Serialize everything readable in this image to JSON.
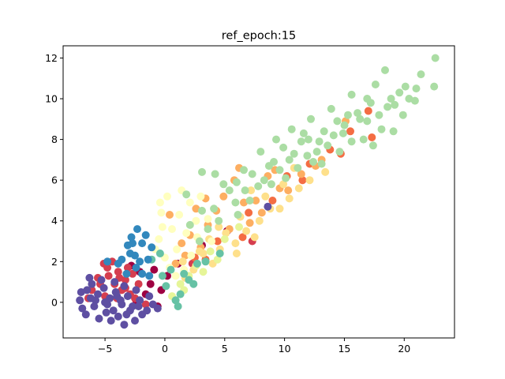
{
  "chart_data": {
    "type": "scatter",
    "title": "ref_epoch:15",
    "xlabel": "",
    "ylabel": "",
    "xlim": [
      -8.5,
      24.2
    ],
    "ylim": [
      -1.75,
      12.6
    ],
    "x_ticks": [
      -5,
      0,
      5,
      10,
      15,
      20
    ],
    "x_tick_labels": [
      "−5",
      "0",
      "5",
      "10",
      "15",
      "20"
    ],
    "y_ticks": [
      0,
      2,
      4,
      6,
      8,
      10,
      12
    ],
    "y_tick_labels": [
      "0",
      "2",
      "4",
      "6",
      "8",
      "10",
      "12"
    ],
    "grid": false,
    "legend": "none",
    "colormap": "Spectral",
    "series": [
      {
        "color": "#9e0142",
        "points": [
          [
            -2.1,
            1.5
          ],
          [
            -1.2,
            0.9
          ],
          [
            -0.6,
            -0.2
          ],
          [
            -2.8,
            1.8
          ],
          [
            0.2,
            1.3
          ],
          [
            3.1,
            2.8
          ],
          [
            -1.6,
            0.4
          ],
          [
            -0.3,
            0.6
          ],
          [
            1.1,
            1.9
          ],
          [
            -2.4,
            0.1
          ],
          [
            5.2,
            3.5
          ],
          [
            -0.9,
            1.6
          ]
        ]
      },
      {
        "color": "#d53e4f",
        "points": [
          [
            -4.8,
            1.7
          ],
          [
            -5.6,
            1.2
          ],
          [
            -3.9,
            1.5
          ],
          [
            -4.2,
            0.9
          ],
          [
            -3.3,
            1.1
          ],
          [
            -6.1,
            0.6
          ],
          [
            -2.9,
            0.4
          ],
          [
            -5.0,
            0.3
          ],
          [
            -4.4,
            2.0
          ],
          [
            -3.6,
            0.6
          ],
          [
            -2.5,
            0.2
          ],
          [
            -5.4,
            0.9
          ],
          [
            -3.1,
            1.7
          ],
          [
            -4.0,
            0.2
          ],
          [
            -2.2,
            0.9
          ],
          [
            -6.4,
            0.2
          ],
          [
            -1.6,
            -0.1
          ],
          [
            -4.7,
            1.3
          ],
          [
            -3.8,
            1.2
          ],
          [
            -2.7,
            1.4
          ],
          [
            2.3,
            1.9
          ],
          [
            7.3,
            3.0
          ],
          [
            -5.1,
            1.9
          ],
          [
            -3.3,
            0.7
          ]
        ]
      },
      {
        "color": "#f46d43",
        "points": [
          [
            17.0,
            9.4
          ],
          [
            15.5,
            8.4
          ],
          [
            12.1,
            6.8
          ],
          [
            10.2,
            6.2
          ],
          [
            4.4,
            3.0
          ],
          [
            2.5,
            2.2
          ],
          [
            7.0,
            4.4
          ],
          [
            11.5,
            6.0
          ],
          [
            6.5,
            3.2
          ],
          [
            13.8,
            7.5
          ],
          [
            17.3,
            8.1
          ],
          [
            3.4,
            2.1
          ],
          [
            9.0,
            5.0
          ],
          [
            14.7,
            7.3
          ]
        ]
      },
      {
        "color": "#fdae61",
        "points": [
          [
            6.2,
            6.6
          ],
          [
            4.3,
            4.5
          ],
          [
            3.4,
            5.1
          ],
          [
            2.1,
            3.3
          ],
          [
            0.4,
            4.3
          ],
          [
            8.6,
            6.2
          ],
          [
            5.4,
            3.6
          ],
          [
            9.6,
            5.6
          ],
          [
            1.4,
            2.9
          ],
          [
            11.4,
            6.3
          ],
          [
            15.1,
            8.9
          ],
          [
            3.6,
            3.8
          ],
          [
            6.6,
            4.9
          ],
          [
            7.6,
            5.0
          ],
          [
            10.3,
            5.5
          ],
          [
            2.6,
            4.6
          ],
          [
            4.9,
            5.2
          ],
          [
            13.1,
            7.0
          ],
          [
            8.1,
            4.4
          ],
          [
            1.7,
            2.3
          ],
          [
            5.8,
            6.0
          ],
          [
            12.6,
            6.7
          ],
          [
            3.0,
            2.7
          ],
          [
            7.1,
            3.9
          ],
          [
            0.9,
            1.9
          ],
          [
            9.2,
            6.5
          ]
        ]
      },
      {
        "color": "#fee08b",
        "points": [
          [
            4.6,
            2.6
          ],
          [
            6.8,
            3.5
          ],
          [
            8.8,
            4.6
          ],
          [
            3.2,
            2.4
          ],
          [
            10.4,
            5.1
          ],
          [
            5.9,
            2.9
          ],
          [
            2.4,
            1.6
          ],
          [
            7.9,
            4.0
          ],
          [
            12.1,
            6.0
          ],
          [
            1.7,
            1.2
          ],
          [
            9.6,
            4.6
          ],
          [
            6.3,
            4.2
          ],
          [
            4.0,
            1.9
          ],
          [
            11.2,
            5.6
          ],
          [
            7.5,
            3.2
          ],
          [
            3.7,
            3.1
          ],
          [
            5.1,
            3.4
          ],
          [
            8.4,
            5.2
          ],
          [
            2.9,
            2.5
          ],
          [
            13.4,
            6.4
          ],
          [
            6.0,
            2.4
          ],
          [
            9.9,
            5.8
          ],
          [
            4.5,
            3.7
          ],
          [
            10.8,
            6.6
          ],
          [
            1.5,
            2.0
          ],
          [
            7.2,
            5.5
          ]
        ]
      },
      {
        "color": "#ffffbf",
        "points": [
          [
            0.2,
            5.2
          ],
          [
            -0.3,
            4.4
          ],
          [
            1.4,
            5.5
          ],
          [
            0.6,
            3.6
          ],
          [
            2.1,
            4.9
          ],
          [
            -0.5,
            3.1
          ],
          [
            1.0,
            2.6
          ],
          [
            2.6,
            4.0
          ],
          [
            0.0,
            2.2
          ],
          [
            3.0,
            5.2
          ],
          [
            -0.8,
            2.6
          ],
          [
            1.8,
            3.4
          ],
          [
            0.4,
            1.7
          ],
          [
            2.7,
            3.2
          ],
          [
            1.2,
            4.3
          ],
          [
            -0.4,
            4.9
          ],
          [
            3.6,
            4.1
          ],
          [
            0.9,
            1.3
          ],
          [
            2.2,
            2.3
          ],
          [
            3.9,
            3.0
          ],
          [
            1.6,
            1.6
          ],
          [
            -0.2,
            3.7
          ]
        ]
      },
      {
        "color": "#e6f598",
        "points": [
          [
            1.3,
            0.9
          ],
          [
            2.6,
            1.8
          ],
          [
            3.8,
            2.5
          ],
          [
            0.6,
            0.3
          ],
          [
            5.0,
            3.1
          ],
          [
            2.0,
            1.3
          ],
          [
            4.4,
            2.1
          ],
          [
            6.2,
            3.7
          ],
          [
            1.6,
            0.6
          ],
          [
            3.2,
            1.5
          ]
        ]
      },
      {
        "color": "#abdda4",
        "points": [
          [
            22.6,
            12.0
          ],
          [
            21.4,
            11.2
          ],
          [
            21.0,
            10.5
          ],
          [
            22.5,
            10.6
          ],
          [
            20.4,
            10.0
          ],
          [
            19.6,
            10.3
          ],
          [
            18.6,
            9.6
          ],
          [
            19.9,
            9.2
          ],
          [
            17.2,
            9.8
          ],
          [
            16.1,
            9.3
          ],
          [
            15.0,
            8.7
          ],
          [
            16.9,
            8.9
          ],
          [
            18.1,
            8.5
          ],
          [
            14.1,
            8.2
          ],
          [
            13.3,
            8.4
          ],
          [
            15.6,
            7.9
          ],
          [
            12.7,
            7.4
          ],
          [
            11.4,
            7.9
          ],
          [
            14.6,
            7.4
          ],
          [
            16.6,
            8.0
          ],
          [
            10.4,
            7.0
          ],
          [
            11.9,
            7.2
          ],
          [
            13.1,
            6.8
          ],
          [
            9.6,
            6.5
          ],
          [
            8.7,
            6.7
          ],
          [
            10.1,
            6.1
          ],
          [
            7.8,
            5.7
          ],
          [
            8.9,
            5.8
          ],
          [
            6.7,
            5.5
          ],
          [
            7.3,
            6.3
          ],
          [
            5.9,
            4.9
          ],
          [
            4.9,
            5.8
          ],
          [
            4.1,
            4.6
          ],
          [
            6.1,
            4.3
          ],
          [
            3.1,
            4.5
          ],
          [
            3.6,
            3.6
          ],
          [
            2.1,
            3.8
          ],
          [
            1.8,
            5.3
          ],
          [
            9.3,
            8.0
          ],
          [
            10.6,
            8.5
          ],
          [
            12.2,
            9.0
          ],
          [
            13.9,
            9.5
          ],
          [
            15.6,
            10.2
          ],
          [
            17.6,
            10.7
          ],
          [
            18.4,
            11.4
          ],
          [
            11.1,
            6.6
          ],
          [
            12.9,
            7.9
          ],
          [
            14.9,
            8.3
          ],
          [
            16.3,
            9.0
          ],
          [
            17.9,
            9.2
          ],
          [
            19.2,
            9.7
          ],
          [
            20.9,
            9.9
          ],
          [
            8.0,
            7.4
          ],
          [
            6.6,
            6.5
          ],
          [
            5.4,
            5.5
          ],
          [
            4.5,
            4.0
          ],
          [
            2.9,
            3.0
          ],
          [
            9.9,
            7.6
          ],
          [
            12.0,
            8.0
          ],
          [
            13.6,
            7.7
          ],
          [
            15.3,
            9.2
          ],
          [
            11.6,
            8.3
          ],
          [
            7.1,
            5.0
          ],
          [
            4.2,
            6.3
          ],
          [
            3.1,
            6.4
          ],
          [
            9.1,
            6.9
          ],
          [
            16.9,
            10.0
          ],
          [
            18.9,
            10.0
          ],
          [
            20.1,
            10.6
          ],
          [
            14.4,
            8.9
          ],
          [
            12.4,
            6.9
          ],
          [
            10.8,
            7.3
          ],
          [
            8.3,
            6.0
          ],
          [
            6.0,
            5.9
          ],
          [
            19.1,
            8.4
          ],
          [
            17.4,
            7.7
          ]
        ]
      },
      {
        "color": "#66c2a5",
        "points": [
          [
            -0.4,
            2.4
          ],
          [
            0.5,
            1.6
          ],
          [
            1.3,
            0.4
          ],
          [
            2.0,
            1.1
          ],
          [
            -1.1,
            2.1
          ],
          [
            0.1,
            0.8
          ],
          [
            2.7,
            1.9
          ],
          [
            1.6,
            1.4
          ],
          [
            3.4,
            2.0
          ],
          [
            0.9,
            0.1
          ],
          [
            -0.2,
            1.3
          ],
          [
            2.4,
            0.9
          ],
          [
            4.6,
            2.4
          ],
          [
            1.1,
            -0.2
          ]
        ]
      },
      {
        "color": "#3288bd",
        "points": [
          [
            -3.1,
            2.8
          ],
          [
            -2.3,
            3.6
          ],
          [
            -1.9,
            2.9
          ],
          [
            -2.9,
            2.4
          ],
          [
            -1.4,
            2.1
          ],
          [
            -2.4,
            1.7
          ],
          [
            -3.6,
            2.1
          ],
          [
            -1.9,
            1.4
          ],
          [
            -2.8,
            3.2
          ],
          [
            -1.1,
            2.7
          ],
          [
            -3.2,
            1.4
          ],
          [
            -2.5,
            2.3
          ],
          [
            -1.6,
            3.3
          ],
          [
            -1.3,
            1.3
          ],
          [
            -3.9,
            1.9
          ],
          [
            -4.8,
            2.0
          ],
          [
            -2.1,
            2.0
          ],
          [
            -2.7,
            2.9
          ]
        ]
      },
      {
        "color": "#5e4fa2",
        "points": [
          [
            -6.5,
            0.6
          ],
          [
            -5.6,
            0.4
          ],
          [
            -4.6,
            0.2
          ],
          [
            -3.6,
            -0.1
          ],
          [
            -6.9,
            -0.3
          ],
          [
            -5.9,
            -0.2
          ],
          [
            -4.9,
            -0.5
          ],
          [
            -3.9,
            -0.7
          ],
          [
            -2.9,
            -0.4
          ],
          [
            -1.9,
            -0.6
          ],
          [
            -6.1,
            0.9
          ],
          [
            -5.1,
            0.7
          ],
          [
            -4.1,
            0.5
          ],
          [
            -3.1,
            0.3
          ],
          [
            -2.1,
            0.1
          ],
          [
            -7.1,
            0.1
          ],
          [
            -6.6,
            -0.6
          ],
          [
            -5.5,
            -0.8
          ],
          [
            -4.5,
            -0.9
          ],
          [
            -3.4,
            -1.1
          ],
          [
            -2.5,
            -0.9
          ],
          [
            -1.5,
            -0.4
          ],
          [
            -0.6,
            -0.3
          ],
          [
            -4.2,
            1.0
          ],
          [
            -5.3,
            1.1
          ],
          [
            -6.3,
            1.2
          ],
          [
            -3.4,
            0.8
          ],
          [
            -2.4,
            0.6
          ],
          [
            -1.3,
            0.3
          ],
          [
            -5.8,
            0.1
          ],
          [
            -4.8,
            -0.1
          ],
          [
            -3.7,
            0.1
          ],
          [
            -2.7,
            -0.2
          ],
          [
            -6.2,
            0.2
          ],
          [
            -7.0,
            0.5
          ],
          [
            -4.3,
            -0.4
          ],
          [
            -3.2,
            -0.6
          ],
          [
            -2.2,
            -0.2
          ],
          [
            -5.0,
            0.0
          ],
          [
            -4.0,
            0.3
          ],
          [
            -1.0,
            -0.1
          ],
          [
            8.6,
            4.7
          ]
        ]
      }
    ]
  }
}
